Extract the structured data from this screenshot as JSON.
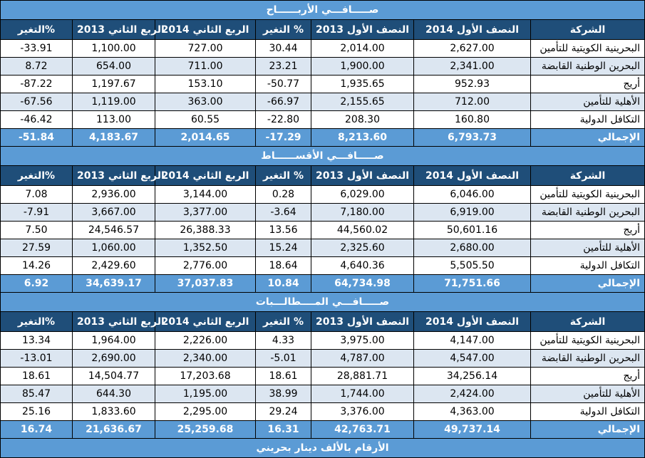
{
  "columns": [
    "الشركة",
    "النصف الأول 2014",
    "النصف الأول 2013",
    "التغير %",
    "الربع الثاني 2014",
    "الربع الثاني 2013",
    "التغير%"
  ],
  "sections": [
    {
      "title": "صـــــافـــي الأربــــــاح",
      "rows": [
        {
          "name": "البحرينية الكويتية للتأمين",
          "h1_2014": "2,627.00",
          "h1_2013": "2,014.00",
          "h1_change": "30.44",
          "q2_2014": "727.00",
          "q2_2013": "1,100.00",
          "q2_change": "-33.91"
        },
        {
          "name": "البحرين الوطنية القابضة",
          "h1_2014": "2,341.00",
          "h1_2013": "1,900.00",
          "h1_change": "23.21",
          "q2_2014": "711.00",
          "q2_2013": "654.00",
          "q2_change": "8.72"
        },
        {
          "name": "أريج",
          "h1_2014": "952.93",
          "h1_2013": "1,935.65",
          "h1_change": "-50.77",
          "q2_2014": "153.10",
          "q2_2013": "1,197.67",
          "q2_change": "-87.22"
        },
        {
          "name": "الأهلية للتأمين",
          "h1_2014": "712.00",
          "h1_2013": "2,155.65",
          "h1_change": "-66.97",
          "q2_2014": "363.00",
          "q2_2013": "1,119.00",
          "q2_change": "-67.56"
        },
        {
          "name": "التكافل الدولية",
          "h1_2014": "160.80",
          "h1_2013": "208.30",
          "h1_change": "-22.80",
          "q2_2014": "60.55",
          "q2_2013": "113.00",
          "q2_change": "-46.42"
        }
      ],
      "total": {
        "name": "الإجمالي",
        "h1_2014": "6,793.73",
        "h1_2013": "8,213.60",
        "h1_change": "-17.29",
        "q2_2014": "2,014.65",
        "q2_2013": "4,183.67",
        "q2_change": "-51.84"
      }
    },
    {
      "title": "صـــــافـــي الأقســــــاط",
      "rows": [
        {
          "name": "البحرينية الكويتية للتأمين",
          "h1_2014": "6,046.00",
          "h1_2013": "6,029.00",
          "h1_change": "0.28",
          "q2_2014": "3,144.00",
          "q2_2013": "2,936.00",
          "q2_change": "7.08"
        },
        {
          "name": "البحرين الوطنية القابضة",
          "h1_2014": "6,919.00",
          "h1_2013": "7,180.00",
          "h1_change": "-3.64",
          "q2_2014": "3,377.00",
          "q2_2013": "3,667.00",
          "q2_change": "-7.91"
        },
        {
          "name": "أريج",
          "h1_2014": "50,601.16",
          "h1_2013": "44,560.02",
          "h1_change": "13.56",
          "q2_2014": "26,388.33",
          "q2_2013": "24,546.57",
          "q2_change": "7.50"
        },
        {
          "name": "الأهلية للتأمين",
          "h1_2014": "2,680.00",
          "h1_2013": "2,325.60",
          "h1_change": "15.24",
          "q2_2014": "1,352.50",
          "q2_2013": "1,060.00",
          "q2_change": "27.59"
        },
        {
          "name": "التكافل الدولية",
          "h1_2014": "5,505.50",
          "h1_2013": "4,640.36",
          "h1_change": "18.64",
          "q2_2014": "2,776.00",
          "q2_2013": "2,429.60",
          "q2_change": "14.26"
        }
      ],
      "total": {
        "name": "الإجمالي",
        "h1_2014": "71,751.66",
        "h1_2013": "64,734.98",
        "h1_change": "10.84",
        "q2_2014": "37,037.83",
        "q2_2013": "34,639.17",
        "q2_change": "6.92"
      }
    },
    {
      "title": "صـــــافـــي المــــطالـــبات",
      "rows": [
        {
          "name": "البحرينية الكويتية للتأمين",
          "h1_2014": "4,147.00",
          "h1_2013": "3,975.00",
          "h1_change": "4.33",
          "q2_2014": "2,226.00",
          "q2_2013": "1,964.00",
          "q2_change": "13.34"
        },
        {
          "name": "البحرين الوطنية القابضة",
          "h1_2014": "4,547.00",
          "h1_2013": "4,787.00",
          "h1_change": "-5.01",
          "q2_2014": "2,340.00",
          "q2_2013": "2,690.00",
          "q2_change": "-13.01"
        },
        {
          "name": "أريج",
          "h1_2014": "34,256.14",
          "h1_2013": "28,881.71",
          "h1_change": "18.61",
          "q2_2014": "17,203.68",
          "q2_2013": "14,504.77",
          "q2_change": "18.61"
        },
        {
          "name": "الأهلية للتأمين",
          "h1_2014": "2,424.00",
          "h1_2013": "1,744.00",
          "h1_change": "38.99",
          "q2_2014": "1,195.00",
          "q2_2013": "644.30",
          "q2_change": "85.47"
        },
        {
          "name": "التكافل الدولية",
          "h1_2014": "4,363.00",
          "h1_2013": "3,376.00",
          "h1_change": "29.24",
          "q2_2014": "2,295.00",
          "q2_2013": "1,833.60",
          "q2_change": "25.16"
        }
      ],
      "total": {
        "name": "الإجمالي",
        "h1_2014": "49,737.14",
        "h1_2013": "42,763.71",
        "h1_change": "16.31",
        "q2_2014": "25,259.68",
        "q2_2013": "21,636.67",
        "q2_change": "16.74"
      }
    }
  ],
  "footer": "الأرقام بالألف دينار بحريني"
}
